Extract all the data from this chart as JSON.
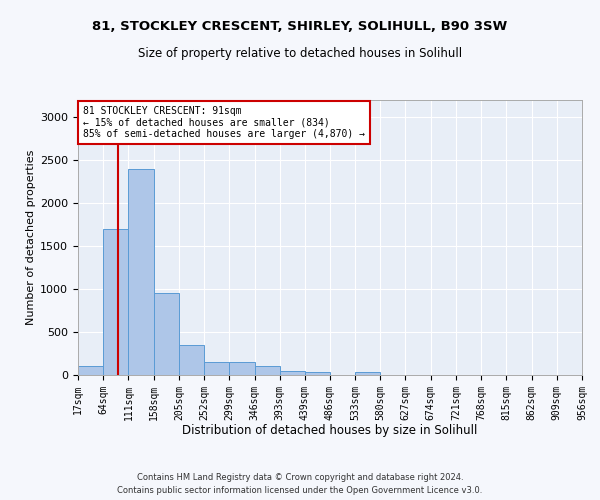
{
  "title_line1": "81, STOCKLEY CRESCENT, SHIRLEY, SOLIHULL, B90 3SW",
  "title_line2": "Size of property relative to detached houses in Solihull",
  "xlabel": "Distribution of detached houses by size in Solihull",
  "ylabel": "Number of detached properties",
  "bin_edges": [
    17,
    64,
    111,
    158,
    205,
    252,
    299,
    346,
    393,
    439,
    486,
    533,
    580,
    627,
    674,
    721,
    768,
    815,
    862,
    909,
    956
  ],
  "bar_heights": [
    100,
    1700,
    2400,
    950,
    345,
    150,
    150,
    100,
    50,
    30,
    5,
    30,
    5,
    0,
    0,
    0,
    0,
    0,
    0,
    0
  ],
  "bar_color": "#aec6e8",
  "bar_edge_color": "#5a9bd5",
  "plot_bg_color": "#e8eef7",
  "fig_bg_color": "#f5f7fc",
  "grid_color": "#ffffff",
  "red_line_x": 91,
  "annotation_line1": "81 STOCKLEY CRESCENT: 91sqm",
  "annotation_line2": "← 15% of detached houses are smaller (834)",
  "annotation_line3": "85% of semi-detached houses are larger (4,870) →",
  "annotation_box_facecolor": "#ffffff",
  "annotation_box_edgecolor": "#cc0000",
  "red_line_color": "#cc0000",
  "ylim": [
    0,
    3200
  ],
  "yticks": [
    0,
    500,
    1000,
    1500,
    2000,
    2500,
    3000
  ],
  "footer_line1": "Contains HM Land Registry data © Crown copyright and database right 2024.",
  "footer_line2": "Contains public sector information licensed under the Open Government Licence v3.0.",
  "tick_labels": [
    "17sqm",
    "64sqm",
    "111sqm",
    "158sqm",
    "205sqm",
    "252sqm",
    "299sqm",
    "346sqm",
    "393sqm",
    "439sqm",
    "486sqm",
    "533sqm",
    "580sqm",
    "627sqm",
    "674sqm",
    "721sqm",
    "768sqm",
    "815sqm",
    "862sqm",
    "909sqm",
    "956sqm"
  ]
}
